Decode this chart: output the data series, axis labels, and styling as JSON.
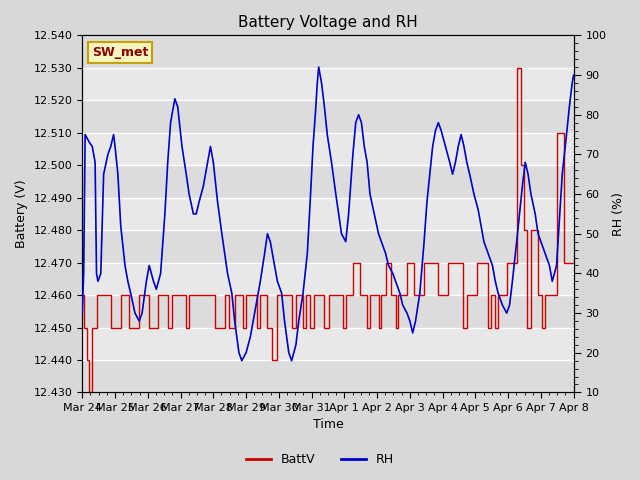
{
  "title": "Battery Voltage and RH",
  "xlabel": "Time",
  "ylabel_left": "Battery (V)",
  "ylabel_right": "RH (%)",
  "station_label": "SW_met",
  "ylim_left": [
    12.43,
    12.54
  ],
  "ylim_right": [
    10,
    100
  ],
  "yticks_left": [
    12.43,
    12.44,
    12.45,
    12.46,
    12.47,
    12.48,
    12.49,
    12.5,
    12.51,
    12.52,
    12.53,
    12.54
  ],
  "yticks_right": [
    10,
    20,
    30,
    40,
    50,
    60,
    70,
    80,
    90,
    100
  ],
  "bg_color": "#d8d8d8",
  "plot_bg_color": "#e8e8e8",
  "grid_color": "#ffffff",
  "battv_color": "#cc0000",
  "rh_color": "#0000cc",
  "legend_battv": "BattV",
  "legend_rh": "RH",
  "battv_data": [
    [
      0.0,
      12.46
    ],
    [
      0.1,
      12.46
    ],
    [
      0.1,
      12.45
    ],
    [
      0.3,
      12.45
    ],
    [
      0.3,
      12.44
    ],
    [
      0.5,
      12.44
    ],
    [
      0.5,
      12.43
    ],
    [
      0.7,
      12.43
    ],
    [
      0.7,
      12.45
    ],
    [
      1.0,
      12.45
    ],
    [
      1.0,
      12.46
    ],
    [
      1.5,
      12.46
    ],
    [
      1.5,
      12.46
    ],
    [
      2.0,
      12.46
    ],
    [
      2.0,
      12.45
    ],
    [
      2.3,
      12.45
    ],
    [
      2.3,
      12.45
    ],
    [
      2.7,
      12.45
    ],
    [
      2.7,
      12.46
    ],
    [
      3.0,
      12.46
    ],
    [
      3.0,
      12.46
    ],
    [
      3.3,
      12.46
    ],
    [
      3.3,
      12.45
    ],
    [
      3.7,
      12.45
    ],
    [
      3.7,
      12.45
    ],
    [
      4.0,
      12.45
    ],
    [
      4.0,
      12.46
    ],
    [
      4.3,
      12.46
    ],
    [
      4.3,
      12.46
    ],
    [
      4.7,
      12.46
    ],
    [
      4.7,
      12.45
    ],
    [
      5.0,
      12.45
    ],
    [
      5.0,
      12.45
    ],
    [
      5.3,
      12.45
    ],
    [
      5.3,
      12.46
    ],
    [
      5.7,
      12.46
    ],
    [
      5.7,
      12.46
    ],
    [
      6.0,
      12.46
    ],
    [
      6.0,
      12.45
    ],
    [
      6.3,
      12.45
    ],
    [
      6.3,
      12.46
    ],
    [
      6.7,
      12.46
    ],
    [
      6.7,
      12.46
    ],
    [
      7.0,
      12.46
    ],
    [
      7.0,
      12.46
    ],
    [
      7.3,
      12.46
    ],
    [
      7.3,
      12.45
    ],
    [
      7.5,
      12.45
    ],
    [
      7.5,
      12.46
    ],
    [
      8.0,
      12.46
    ],
    [
      8.0,
      12.46
    ],
    [
      8.3,
      12.46
    ],
    [
      8.3,
      12.46
    ],
    [
      8.7,
      12.46
    ],
    [
      8.7,
      12.46
    ],
    [
      9.0,
      12.46
    ],
    [
      9.0,
      12.46
    ],
    [
      9.3,
      12.46
    ],
    [
      9.3,
      12.45
    ],
    [
      9.7,
      12.45
    ],
    [
      9.7,
      12.45
    ],
    [
      10.0,
      12.45
    ],
    [
      10.0,
      12.46
    ],
    [
      10.3,
      12.46
    ],
    [
      10.3,
      12.45
    ],
    [
      10.7,
      12.45
    ],
    [
      10.7,
      12.46
    ],
    [
      11.0,
      12.46
    ],
    [
      11.0,
      12.46
    ],
    [
      11.3,
      12.46
    ],
    [
      11.3,
      12.45
    ],
    [
      11.5,
      12.45
    ],
    [
      11.5,
      12.46
    ],
    [
      12.0,
      12.46
    ],
    [
      12.0,
      12.46
    ],
    [
      12.3,
      12.46
    ],
    [
      12.3,
      12.45
    ],
    [
      12.5,
      12.45
    ],
    [
      12.5,
      12.46
    ],
    [
      13.0,
      12.46
    ],
    [
      13.0,
      12.45
    ],
    [
      13.3,
      12.45
    ],
    [
      13.3,
      12.44
    ],
    [
      13.7,
      12.44
    ],
    [
      13.7,
      12.46
    ],
    [
      14.0,
      12.46
    ],
    [
      14.0,
      12.46
    ],
    [
      14.3,
      12.46
    ],
    [
      14.3,
      12.46
    ],
    [
      14.7,
      12.46
    ],
    [
      14.7,
      12.45
    ],
    [
      15.0,
      12.45
    ],
    [
      15.0,
      12.46
    ],
    [
      15.5,
      12.46
    ],
    [
      15.5,
      12.45
    ],
    [
      15.7,
      12.45
    ],
    [
      15.7,
      12.46
    ],
    [
      16.0,
      12.46
    ],
    [
      16.0,
      12.45
    ],
    [
      16.3,
      12.45
    ],
    [
      16.3,
      12.46
    ],
    [
      16.7,
      12.46
    ],
    [
      16.7,
      12.46
    ],
    [
      17.0,
      12.46
    ],
    [
      17.0,
      12.45
    ],
    [
      17.3,
      12.45
    ],
    [
      17.3,
      12.46
    ],
    [
      17.7,
      12.46
    ],
    [
      17.7,
      12.46
    ],
    [
      18.0,
      12.46
    ],
    [
      18.0,
      12.46
    ],
    [
      18.3,
      12.46
    ],
    [
      18.3,
      12.45
    ],
    [
      18.5,
      12.45
    ],
    [
      18.5,
      12.46
    ],
    [
      19.0,
      12.46
    ],
    [
      19.0,
      12.47
    ],
    [
      19.5,
      12.47
    ],
    [
      19.5,
      12.46
    ],
    [
      20.0,
      12.46
    ],
    [
      20.0,
      12.45
    ],
    [
      20.2,
      12.45
    ],
    [
      20.2,
      12.46
    ],
    [
      20.5,
      12.46
    ],
    [
      20.5,
      12.46
    ],
    [
      20.8,
      12.46
    ],
    [
      20.8,
      12.45
    ],
    [
      21.0,
      12.45
    ],
    [
      21.0,
      12.46
    ],
    [
      21.3,
      12.46
    ],
    [
      21.3,
      12.47
    ],
    [
      21.7,
      12.47
    ],
    [
      21.7,
      12.46
    ],
    [
      22.0,
      12.46
    ],
    [
      22.0,
      12.45
    ],
    [
      22.2,
      12.45
    ],
    [
      22.2,
      12.46
    ],
    [
      22.5,
      12.46
    ],
    [
      22.5,
      12.46
    ],
    [
      22.8,
      12.46
    ],
    [
      22.8,
      12.47
    ],
    [
      23.3,
      12.47
    ],
    [
      23.3,
      12.46
    ],
    [
      23.7,
      12.46
    ],
    [
      23.7,
      12.46
    ],
    [
      24.0,
      12.46
    ],
    [
      24.0,
      12.47
    ],
    [
      24.5,
      12.47
    ],
    [
      24.5,
      12.47
    ],
    [
      25.0,
      12.47
    ],
    [
      25.0,
      12.46
    ],
    [
      25.3,
      12.46
    ],
    [
      25.3,
      12.46
    ],
    [
      25.7,
      12.46
    ],
    [
      25.7,
      12.47
    ],
    [
      26.2,
      12.47
    ],
    [
      26.2,
      12.47
    ],
    [
      26.7,
      12.47
    ],
    [
      26.7,
      12.45
    ],
    [
      27.0,
      12.45
    ],
    [
      27.0,
      12.46
    ],
    [
      27.3,
      12.46
    ],
    [
      27.3,
      12.46
    ],
    [
      27.7,
      12.46
    ],
    [
      27.7,
      12.47
    ],
    [
      28.2,
      12.47
    ],
    [
      28.2,
      12.47
    ],
    [
      28.5,
      12.47
    ],
    [
      28.5,
      12.45
    ],
    [
      28.7,
      12.45
    ],
    [
      28.7,
      12.46
    ],
    [
      29.0,
      12.46
    ],
    [
      29.0,
      12.45
    ],
    [
      29.2,
      12.45
    ],
    [
      29.2,
      12.46
    ],
    [
      29.5,
      12.46
    ],
    [
      29.5,
      12.46
    ],
    [
      29.8,
      12.46
    ],
    [
      29.8,
      12.47
    ],
    [
      30.5,
      12.47
    ],
    [
      30.5,
      12.53
    ],
    [
      30.8,
      12.53
    ],
    [
      30.8,
      12.5
    ],
    [
      31.0,
      12.5
    ],
    [
      31.0,
      12.48
    ],
    [
      31.2,
      12.48
    ],
    [
      31.2,
      12.45
    ],
    [
      31.5,
      12.45
    ],
    [
      31.5,
      12.48
    ],
    [
      32.0,
      12.48
    ],
    [
      32.0,
      12.46
    ],
    [
      32.3,
      12.46
    ],
    [
      32.3,
      12.45
    ],
    [
      32.5,
      12.45
    ],
    [
      32.5,
      12.46
    ],
    [
      33.0,
      12.46
    ],
    [
      33.0,
      12.46
    ],
    [
      33.3,
      12.46
    ],
    [
      33.3,
      12.51
    ],
    [
      33.8,
      12.51
    ],
    [
      33.8,
      12.47
    ],
    [
      34.5,
      12.47
    ]
  ],
  "rh_data": [
    [
      0.0,
      30
    ],
    [
      0.1,
      40
    ],
    [
      0.2,
      75
    ],
    [
      0.5,
      73
    ],
    [
      0.7,
      72
    ],
    [
      0.9,
      68
    ],
    [
      1.0,
      40
    ],
    [
      1.1,
      38
    ],
    [
      1.3,
      40
    ],
    [
      1.5,
      65
    ],
    [
      1.8,
      70
    ],
    [
      2.0,
      72
    ],
    [
      2.2,
      75
    ],
    [
      2.3,
      72
    ],
    [
      2.5,
      65
    ],
    [
      2.7,
      52
    ],
    [
      3.0,
      42
    ],
    [
      3.2,
      38
    ],
    [
      3.4,
      35
    ],
    [
      3.7,
      30
    ],
    [
      4.0,
      28
    ],
    [
      4.2,
      30
    ],
    [
      4.5,
      38
    ],
    [
      4.7,
      42
    ],
    [
      5.0,
      38
    ],
    [
      5.2,
      36
    ],
    [
      5.5,
      40
    ],
    [
      5.8,
      55
    ],
    [
      6.0,
      68
    ],
    [
      6.2,
      78
    ],
    [
      6.4,
      82
    ],
    [
      6.5,
      84
    ],
    [
      6.7,
      82
    ],
    [
      7.0,
      72
    ],
    [
      7.3,
      65
    ],
    [
      7.5,
      60
    ],
    [
      7.8,
      55
    ],
    [
      8.0,
      55
    ],
    [
      8.2,
      58
    ],
    [
      8.5,
      62
    ],
    [
      8.8,
      68
    ],
    [
      9.0,
      72
    ],
    [
      9.2,
      68
    ],
    [
      9.5,
      58
    ],
    [
      9.8,
      50
    ],
    [
      10.0,
      45
    ],
    [
      10.2,
      40
    ],
    [
      10.5,
      35
    ],
    [
      10.7,
      28
    ],
    [
      11.0,
      20
    ],
    [
      11.2,
      18
    ],
    [
      11.5,
      20
    ],
    [
      11.8,
      24
    ],
    [
      12.0,
      28
    ],
    [
      12.2,
      32
    ],
    [
      12.5,
      38
    ],
    [
      12.8,
      45
    ],
    [
      13.0,
      50
    ],
    [
      13.2,
      48
    ],
    [
      13.5,
      42
    ],
    [
      13.7,
      38
    ],
    [
      14.0,
      35
    ],
    [
      14.2,
      28
    ],
    [
      14.5,
      20
    ],
    [
      14.7,
      18
    ],
    [
      15.0,
      22
    ],
    [
      15.2,
      28
    ],
    [
      15.5,
      35
    ],
    [
      15.8,
      45
    ],
    [
      16.0,
      58
    ],
    [
      16.2,
      72
    ],
    [
      16.4,
      82
    ],
    [
      16.5,
      88
    ],
    [
      16.6,
      92
    ],
    [
      16.8,
      88
    ],
    [
      17.0,
      82
    ],
    [
      17.2,
      75
    ],
    [
      17.5,
      68
    ],
    [
      17.8,
      60
    ],
    [
      18.0,
      55
    ],
    [
      18.2,
      50
    ],
    [
      18.5,
      48
    ],
    [
      18.7,
      55
    ],
    [
      19.0,
      70
    ],
    [
      19.2,
      78
    ],
    [
      19.4,
      80
    ],
    [
      19.6,
      78
    ],
    [
      19.8,
      72
    ],
    [
      20.0,
      68
    ],
    [
      20.2,
      60
    ],
    [
      20.5,
      55
    ],
    [
      20.8,
      50
    ],
    [
      21.0,
      48
    ],
    [
      21.3,
      45
    ],
    [
      21.5,
      42
    ],
    [
      21.8,
      40
    ],
    [
      22.0,
      38
    ],
    [
      22.3,
      35
    ],
    [
      22.5,
      32
    ],
    [
      22.8,
      30
    ],
    [
      23.0,
      28
    ],
    [
      23.2,
      25
    ],
    [
      23.4,
      28
    ],
    [
      23.7,
      35
    ],
    [
      24.0,
      48
    ],
    [
      24.2,
      58
    ],
    [
      24.4,
      65
    ],
    [
      24.6,
      72
    ],
    [
      24.8,
      76
    ],
    [
      25.0,
      78
    ],
    [
      25.2,
      76
    ],
    [
      25.5,
      72
    ],
    [
      25.8,
      68
    ],
    [
      26.0,
      65
    ],
    [
      26.2,
      68
    ],
    [
      26.4,
      72
    ],
    [
      26.6,
      75
    ],
    [
      26.8,
      72
    ],
    [
      27.0,
      68
    ],
    [
      27.2,
      65
    ],
    [
      27.5,
      60
    ],
    [
      27.8,
      56
    ],
    [
      28.0,
      52
    ],
    [
      28.2,
      48
    ],
    [
      28.5,
      45
    ],
    [
      28.8,
      42
    ],
    [
      29.0,
      38
    ],
    [
      29.2,
      35
    ],
    [
      29.5,
      32
    ],
    [
      29.8,
      30
    ],
    [
      30.0,
      32
    ],
    [
      30.2,
      38
    ],
    [
      30.5,
      48
    ],
    [
      30.7,
      55
    ],
    [
      30.9,
      62
    ],
    [
      31.1,
      68
    ],
    [
      31.3,
      65
    ],
    [
      31.5,
      60
    ],
    [
      31.8,
      55
    ],
    [
      32.0,
      50
    ],
    [
      32.2,
      48
    ],
    [
      32.5,
      45
    ],
    [
      32.8,
      42
    ],
    [
      33.0,
      38
    ],
    [
      33.3,
      42
    ],
    [
      33.7,
      65
    ],
    [
      34.0,
      75
    ],
    [
      34.2,
      82
    ],
    [
      34.4,
      88
    ],
    [
      34.5,
      90
    ]
  ],
  "x_tick_labels": [
    "Mar 24",
    "Mar 25",
    "Mar 26",
    "Mar 27",
    "Mar 28",
    "Mar 29",
    "Mar 30",
    "Mar 31",
    "Apr 1",
    "Apr 2",
    "Apr 3",
    "Apr 4",
    "Apr 5",
    "Apr 6",
    "Apr 7",
    "Apr 8"
  ],
  "x_range": [
    0,
    34.5
  ],
  "title_fontsize": 11,
  "tick_fontsize": 8,
  "label_fontsize": 9
}
